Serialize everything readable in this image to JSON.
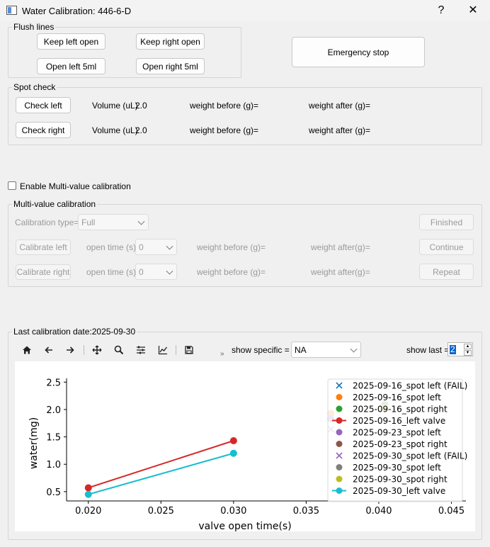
{
  "window": {
    "title": "Water Calibration: 446-6-D",
    "help_label": "?",
    "close_label": "✕"
  },
  "flush": {
    "group_title": "Flush lines",
    "keep_left": "Keep left open",
    "keep_right": "Keep right open",
    "open_left": "Open left 5ml",
    "open_right": "Open right 5ml"
  },
  "emergency_label": "Emergency stop",
  "spot": {
    "group_title": "Spot check",
    "check_left": "Check left",
    "check_right": "Check right",
    "volume_label": "Volume (uL)",
    "left_volume": "2.0",
    "right_volume": "2.0",
    "weight_before": "weight before (g)=",
    "weight_after": "weight after (g)="
  },
  "enable_multi_label": "Enable Multi-value calibration",
  "multi": {
    "group_title": "Multi-value calibration",
    "type_label": "Calibration type=",
    "type_value": "Full",
    "cal_left": "Calibrate left",
    "cal_right": "Calibrate right",
    "open_time_label": "open time (s)",
    "open_time_left": "0",
    "open_time_right": "0",
    "weight_before": "weight before (g)=",
    "weight_after": "weight after(g)=",
    "finished": "Finished",
    "continue": "Continue",
    "repeat": "Repeat"
  },
  "last_cal": {
    "group_title": "Last calibration date:2025-09-30",
    "show_specific_label": "show specific =",
    "show_specific_value": "NA",
    "show_last_label": "show last =",
    "show_last_value": "2",
    "toolbar_more": "»"
  },
  "chart_data": {
    "type": "line",
    "xlabel": "valve open time(s)",
    "ylabel": "water(mg)",
    "xlim": [
      0.0185,
      0.046
    ],
    "ylim": [
      0.33,
      2.75
    ],
    "xticks": [
      "0.020",
      "0.025",
      "0.030",
      "0.035",
      "0.040",
      "0.045"
    ],
    "yticks": [
      "0.5",
      "1.0",
      "1.5",
      "2.0",
      "2.5"
    ],
    "legend_position": "upper-right",
    "series": [
      {
        "name": "2025-09-16_spot left (FAIL)",
        "marker": "x",
        "color": "#1f77b4",
        "points": []
      },
      {
        "name": "2025-09-16_spot left",
        "marker": "o",
        "color": "#ff7f0e",
        "points": [
          [
            0.0367,
            1.93
          ]
        ]
      },
      {
        "name": "2025-09-16_spot right",
        "marker": "o",
        "color": "#2ca02c",
        "points": [
          [
            0.0404,
            2.09
          ]
        ]
      },
      {
        "name": "2025-09-16_left valve",
        "marker": "o-line",
        "color": "#d62728",
        "points": [
          [
            0.02,
            0.57
          ],
          [
            0.03,
            1.43
          ]
        ]
      },
      {
        "name": "2025-09-23_spot left",
        "marker": "o",
        "color": "#9467bd",
        "points": [
          [
            0.0367,
            1.83
          ]
        ]
      },
      {
        "name": "2025-09-23_spot right",
        "marker": "o",
        "color": "#8c564b",
        "points": []
      },
      {
        "name": "2025-09-30_spot left (FAIL)",
        "marker": "x",
        "color": "#9467bd",
        "points": [
          [
            0.0367,
            1.64
          ]
        ]
      },
      {
        "name": "2025-09-30_spot left",
        "marker": "o",
        "color": "#7f7f7f",
        "points": []
      },
      {
        "name": "2025-09-30_spot right",
        "marker": "o",
        "color": "#bcbd22",
        "points": [
          [
            0.0404,
            2.03
          ]
        ]
      },
      {
        "name": "2025-09-30_left valve",
        "marker": "o-line",
        "color": "#17becf",
        "points": [
          [
            0.02,
            0.45
          ],
          [
            0.03,
            1.2
          ]
        ]
      }
    ]
  }
}
